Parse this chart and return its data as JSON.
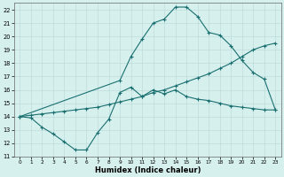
{
  "xlabel": "Humidex (Indice chaleur)",
  "bg_color": "#d6f0ee",
  "line_color": "#1a7070",
  "grid_color": "#b8d8d8",
  "xlim": [
    -0.5,
    23.5
  ],
  "ylim": [
    11,
    22.5
  ],
  "xticks": [
    0,
    1,
    2,
    3,
    4,
    5,
    6,
    7,
    8,
    9,
    10,
    11,
    12,
    13,
    14,
    15,
    16,
    17,
    18,
    19,
    20,
    21,
    22,
    23
  ],
  "yticks": [
    11,
    12,
    13,
    14,
    15,
    16,
    17,
    18,
    19,
    20,
    21,
    22
  ],
  "line1_x": [
    0,
    1,
    2,
    3,
    4,
    5,
    6,
    7,
    8,
    9,
    10,
    11,
    12,
    13,
    14,
    15,
    16,
    17,
    18,
    19,
    20,
    21,
    22,
    23
  ],
  "line1_y": [
    14.0,
    13.9,
    13.2,
    12.7,
    12.1,
    11.5,
    11.5,
    12.8,
    13.8,
    15.8,
    16.2,
    15.5,
    16.0,
    15.7,
    16.0,
    15.5,
    15.3,
    15.2,
    15.0,
    14.8,
    14.7,
    14.6,
    14.5,
    14.5
  ],
  "line2_x": [
    0,
    1,
    2,
    3,
    4,
    5,
    6,
    7,
    8,
    9,
    10,
    11,
    12,
    13,
    14,
    15,
    16,
    17,
    18,
    19,
    20,
    21,
    22,
    23
  ],
  "line2_y": [
    14.0,
    14.1,
    14.2,
    14.3,
    14.4,
    14.5,
    14.6,
    14.7,
    14.9,
    15.1,
    15.3,
    15.5,
    15.8,
    16.0,
    16.3,
    16.6,
    16.9,
    17.2,
    17.6,
    18.0,
    18.5,
    19.0,
    19.3,
    19.5
  ],
  "line3_x": [
    0,
    9,
    10,
    11,
    12,
    13,
    14,
    15,
    16,
    17,
    18,
    19,
    20,
    21,
    22,
    23
  ],
  "line3_y": [
    14.0,
    16.7,
    18.5,
    19.8,
    21.0,
    21.3,
    22.2,
    22.2,
    21.5,
    20.3,
    20.1,
    19.3,
    18.2,
    17.3,
    16.8,
    14.5
  ]
}
